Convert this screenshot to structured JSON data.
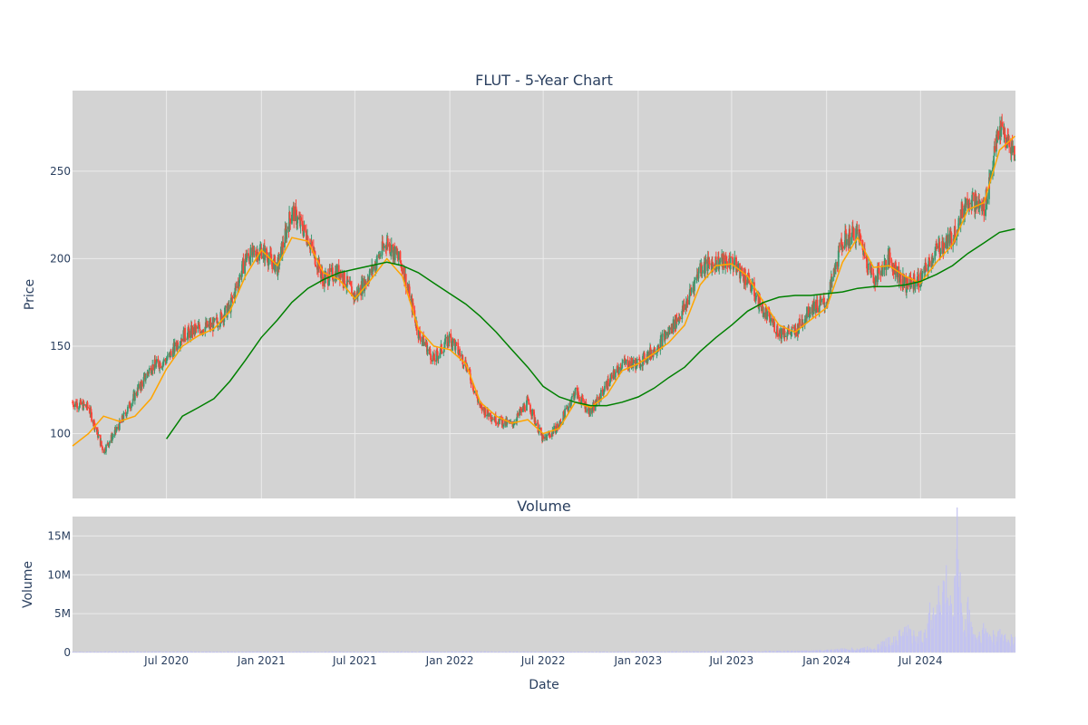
{
  "colors": {
    "plot_bg": "#d3d3d3",
    "grid": "#ebebeb",
    "increasing": "#3d9970",
    "decreasing": "#ff4136",
    "ma_short": "#ffa500",
    "ma_long": "#008000",
    "volume": "#c3c3f0"
  },
  "chart_data": [
    {
      "type": "candlestick",
      "title": "FLUT - 5-Year Chart",
      "xlabel": "",
      "ylabel": "Price",
      "ylim": [
        63,
        296
      ],
      "xlim": [
        "2020-01-01",
        "2025-01-01"
      ],
      "grid": true,
      "y_ticks": [
        100,
        150,
        200,
        250
      ],
      "x_ticks": [
        {
          "date": "2020-07-01",
          "label": "Jul 2020"
        },
        {
          "date": "2021-01-01",
          "label": "Jan 2021"
        },
        {
          "date": "2021-07-01",
          "label": "Jul 2021"
        },
        {
          "date": "2022-01-01",
          "label": "Jan 2022"
        },
        {
          "date": "2022-07-01",
          "label": "Jul 2022"
        },
        {
          "date": "2023-01-01",
          "label": "Jan 2023"
        },
        {
          "date": "2023-07-01",
          "label": "Jul 2023"
        },
        {
          "date": "2024-01-01",
          "label": "Jan 2024"
        },
        {
          "date": "2024-07-01",
          "label": "Jul 2024"
        }
      ],
      "close_series": [
        [
          "2020-01-01",
          118
        ],
        [
          "2020-02-01",
          115
        ],
        [
          "2020-03-01",
          90
        ],
        [
          "2020-04-01",
          105
        ],
        [
          "2020-05-01",
          122
        ],
        [
          "2020-06-01",
          138
        ],
        [
          "2020-07-01",
          142
        ],
        [
          "2020-08-01",
          156
        ],
        [
          "2020-09-01",
          160
        ],
        [
          "2020-10-01",
          162
        ],
        [
          "2020-11-01",
          172
        ],
        [
          "2020-12-01",
          200
        ],
        [
          "2021-01-01",
          205
        ],
        [
          "2021-02-01",
          195
        ],
        [
          "2021-03-01",
          228
        ],
        [
          "2021-04-01",
          212
        ],
        [
          "2021-05-01",
          188
        ],
        [
          "2021-06-01",
          193
        ],
        [
          "2021-07-01",
          178
        ],
        [
          "2021-08-01",
          192
        ],
        [
          "2021-09-01",
          210
        ],
        [
          "2021-10-01",
          196
        ],
        [
          "2021-11-01",
          158
        ],
        [
          "2021-12-01",
          142
        ],
        [
          "2022-01-01",
          155
        ],
        [
          "2022-02-01",
          140
        ],
        [
          "2022-03-01",
          115
        ],
        [
          "2022-04-01",
          108
        ],
        [
          "2022-05-01",
          105
        ],
        [
          "2022-06-01",
          118
        ],
        [
          "2022-07-01",
          96
        ],
        [
          "2022-08-01",
          105
        ],
        [
          "2022-09-01",
          124
        ],
        [
          "2022-10-01",
          112
        ],
        [
          "2022-11-01",
          128
        ],
        [
          "2022-12-01",
          140
        ],
        [
          "2023-01-01",
          140
        ],
        [
          "2023-02-01",
          148
        ],
        [
          "2023-03-01",
          158
        ],
        [
          "2023-04-01",
          172
        ],
        [
          "2023-05-01",
          195
        ],
        [
          "2023-06-01",
          198
        ],
        [
          "2023-07-01",
          198
        ],
        [
          "2023-08-01",
          188
        ],
        [
          "2023-09-01",
          170
        ],
        [
          "2023-10-01",
          158
        ],
        [
          "2023-11-01",
          158
        ],
        [
          "2023-12-01",
          172
        ],
        [
          "2024-01-01",
          175
        ],
        [
          "2024-02-01",
          210
        ],
        [
          "2024-03-01",
          215
        ],
        [
          "2024-04-01",
          188
        ],
        [
          "2024-05-01",
          200
        ],
        [
          "2024-06-01",
          185
        ],
        [
          "2024-07-01",
          188
        ],
        [
          "2024-08-01",
          205
        ],
        [
          "2024-09-01",
          212
        ],
        [
          "2024-10-01",
          235
        ],
        [
          "2024-11-01",
          228
        ],
        [
          "2024-12-01",
          275
        ],
        [
          "2024-12-31",
          260
        ]
      ],
      "ma_short": [
        [
          "2020-01-01",
          93
        ],
        [
          "2020-02-01",
          100
        ],
        [
          "2020-03-01",
          110
        ],
        [
          "2020-04-01",
          107
        ],
        [
          "2020-05-01",
          110
        ],
        [
          "2020-06-01",
          120
        ],
        [
          "2020-07-01",
          137
        ],
        [
          "2020-08-01",
          150
        ],
        [
          "2020-09-01",
          156
        ],
        [
          "2020-10-01",
          160
        ],
        [
          "2020-11-01",
          170
        ],
        [
          "2020-12-01",
          190
        ],
        [
          "2021-01-01",
          205
        ],
        [
          "2021-02-01",
          196
        ],
        [
          "2021-03-01",
          212
        ],
        [
          "2021-04-01",
          210
        ],
        [
          "2021-05-01",
          192
        ],
        [
          "2021-06-01",
          188
        ],
        [
          "2021-07-01",
          177
        ],
        [
          "2021-08-01",
          188
        ],
        [
          "2021-09-01",
          200
        ],
        [
          "2021-10-01",
          190
        ],
        [
          "2021-11-01",
          160
        ],
        [
          "2021-12-01",
          150
        ],
        [
          "2022-01-01",
          148
        ],
        [
          "2022-02-01",
          140
        ],
        [
          "2022-03-01",
          118
        ],
        [
          "2022-04-01",
          110
        ],
        [
          "2022-05-01",
          106
        ],
        [
          "2022-06-01",
          108
        ],
        [
          "2022-07-01",
          100
        ],
        [
          "2022-08-01",
          103
        ],
        [
          "2022-09-01",
          118
        ],
        [
          "2022-10-01",
          115
        ],
        [
          "2022-11-01",
          122
        ],
        [
          "2022-12-01",
          136
        ],
        [
          "2023-01-01",
          140
        ],
        [
          "2023-02-01",
          146
        ],
        [
          "2023-03-01",
          152
        ],
        [
          "2023-04-01",
          162
        ],
        [
          "2023-05-01",
          185
        ],
        [
          "2023-06-01",
          196
        ],
        [
          "2023-07-01",
          197
        ],
        [
          "2023-08-01",
          190
        ],
        [
          "2023-09-01",
          175
        ],
        [
          "2023-10-01",
          162
        ],
        [
          "2023-11-01",
          158
        ],
        [
          "2023-12-01",
          165
        ],
        [
          "2024-01-01",
          172
        ],
        [
          "2024-02-01",
          198
        ],
        [
          "2024-03-01",
          212
        ],
        [
          "2024-04-01",
          195
        ],
        [
          "2024-05-01",
          196
        ],
        [
          "2024-06-01",
          190
        ],
        [
          "2024-07-01",
          186
        ],
        [
          "2024-08-01",
          198
        ],
        [
          "2024-09-01",
          208
        ],
        [
          "2024-10-01",
          228
        ],
        [
          "2024-11-01",
          232
        ],
        [
          "2024-12-01",
          262
        ],
        [
          "2024-12-31",
          270
        ]
      ],
      "ma_long": [
        [
          "2020-07-01",
          97
        ],
        [
          "2020-08-01",
          110
        ],
        [
          "2020-09-01",
          115
        ],
        [
          "2020-10-01",
          120
        ],
        [
          "2020-11-01",
          130
        ],
        [
          "2020-12-01",
          142
        ],
        [
          "2021-01-01",
          155
        ],
        [
          "2021-02-01",
          165
        ],
        [
          "2021-03-01",
          175
        ],
        [
          "2021-04-01",
          183
        ],
        [
          "2021-05-01",
          188
        ],
        [
          "2021-06-01",
          192
        ],
        [
          "2021-07-01",
          194
        ],
        [
          "2021-08-01",
          196
        ],
        [
          "2021-09-01",
          198
        ],
        [
          "2021-10-01",
          196
        ],
        [
          "2021-11-01",
          192
        ],
        [
          "2021-12-01",
          186
        ],
        [
          "2022-01-01",
          180
        ],
        [
          "2022-02-01",
          174
        ],
        [
          "2022-03-01",
          167
        ],
        [
          "2022-04-01",
          158
        ],
        [
          "2022-05-01",
          148
        ],
        [
          "2022-06-01",
          138
        ],
        [
          "2022-07-01",
          127
        ],
        [
          "2022-08-01",
          121
        ],
        [
          "2022-09-01",
          118
        ],
        [
          "2022-10-01",
          116
        ],
        [
          "2022-11-01",
          116
        ],
        [
          "2022-12-01",
          118
        ],
        [
          "2023-01-01",
          121
        ],
        [
          "2023-02-01",
          126
        ],
        [
          "2023-03-01",
          132
        ],
        [
          "2023-04-01",
          138
        ],
        [
          "2023-05-01",
          147
        ],
        [
          "2023-06-01",
          155
        ],
        [
          "2023-07-01",
          162
        ],
        [
          "2023-08-01",
          170
        ],
        [
          "2023-09-01",
          175
        ],
        [
          "2023-10-01",
          178
        ],
        [
          "2023-11-01",
          179
        ],
        [
          "2023-12-01",
          179
        ],
        [
          "2024-01-01",
          180
        ],
        [
          "2024-02-01",
          181
        ],
        [
          "2024-03-01",
          183
        ],
        [
          "2024-04-01",
          184
        ],
        [
          "2024-05-01",
          184
        ],
        [
          "2024-06-01",
          185
        ],
        [
          "2024-07-01",
          187
        ],
        [
          "2024-08-01",
          191
        ],
        [
          "2024-09-01",
          196
        ],
        [
          "2024-10-01",
          203
        ],
        [
          "2024-11-01",
          209
        ],
        [
          "2024-12-01",
          215
        ],
        [
          "2024-12-31",
          217
        ]
      ]
    },
    {
      "type": "bar",
      "title": "Volume",
      "xlabel": "Date",
      "ylabel": "Volume",
      "ylim": [
        0,
        17500000
      ],
      "y_ticks": [
        {
          "value": 0,
          "label": "0"
        },
        {
          "value": 5000000,
          "label": "5M"
        },
        {
          "value": 10000000,
          "label": "10M"
        },
        {
          "value": 15000000,
          "label": "15M"
        }
      ],
      "volume_series": [
        [
          "2020-01-01",
          100000
        ],
        [
          "2020-07-01",
          120000
        ],
        [
          "2021-01-01",
          110000
        ],
        [
          "2021-07-01",
          100000
        ],
        [
          "2022-01-01",
          120000
        ],
        [
          "2022-07-01",
          100000
        ],
        [
          "2023-01-01",
          110000
        ],
        [
          "2023-07-01",
          150000
        ],
        [
          "2023-12-01",
          200000
        ],
        [
          "2024-02-01",
          400000
        ],
        [
          "2024-04-01",
          600000
        ],
        [
          "2024-05-01",
          1500000
        ],
        [
          "2024-06-01",
          2800000
        ],
        [
          "2024-07-01",
          2000000
        ],
        [
          "2024-08-01",
          6500000
        ],
        [
          "2024-08-20",
          8500000
        ],
        [
          "2024-09-01",
          4000000
        ],
        [
          "2024-09-10",
          16500000
        ],
        [
          "2024-09-20",
          3500000
        ],
        [
          "2024-10-01",
          5500000
        ],
        [
          "2024-10-15",
          2000000
        ],
        [
          "2024-11-01",
          3000000
        ],
        [
          "2024-11-15",
          2000000
        ],
        [
          "2024-12-01",
          2200000
        ],
        [
          "2024-12-31",
          1800000
        ]
      ]
    }
  ]
}
